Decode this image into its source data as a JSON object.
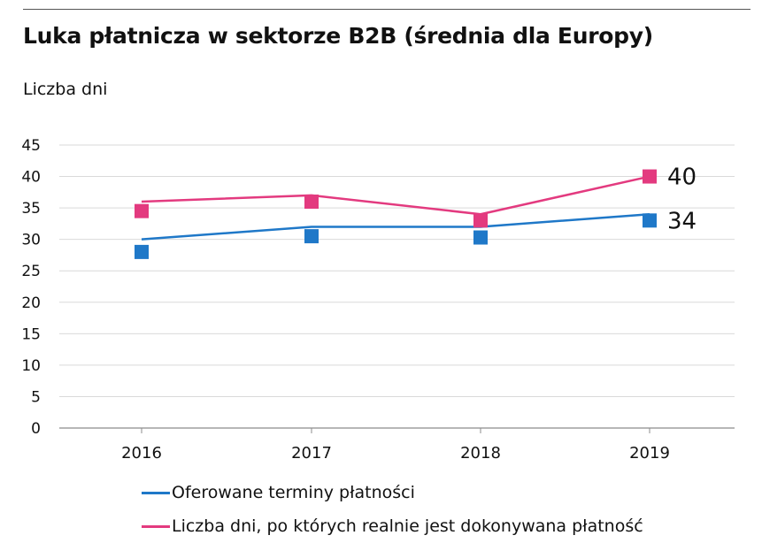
{
  "title": "Luka płatnicza w sektorze B2B (średnia dla Europy)",
  "units_label": "Liczba dni",
  "colors": {
    "blue": "#1f78c8",
    "pink": "#e33a7f",
    "grid": "#d9d9d9",
    "axis": "#8c8c8c"
  },
  "chart_data": {
    "type": "line",
    "title": "Luka płatnicza w sektorze B2B (średnia dla Europy)",
    "ylabel": "Liczba dni",
    "xlabel": "",
    "categories": [
      "2016",
      "2017",
      "2018",
      "2019"
    ],
    "ylim": [
      0,
      45
    ],
    "yticks": [
      0,
      5,
      10,
      15,
      20,
      25,
      30,
      35,
      40,
      45
    ],
    "grid": true,
    "legend": "bottom",
    "series": [
      {
        "name": "Oferowane terminy płatności",
        "color": "#1f78c8",
        "values": [
          30,
          32,
          32,
          34
        ],
        "markers": [
          28,
          30.5,
          30.3,
          33
        ],
        "end_label": "34"
      },
      {
        "name": "Liczba dni, po których realnie jest dokonywana płatność",
        "color": "#e33a7f",
        "values": [
          36,
          37,
          34,
          40
        ],
        "markers": [
          34.5,
          36,
          33,
          40
        ],
        "end_label": "40"
      }
    ]
  }
}
